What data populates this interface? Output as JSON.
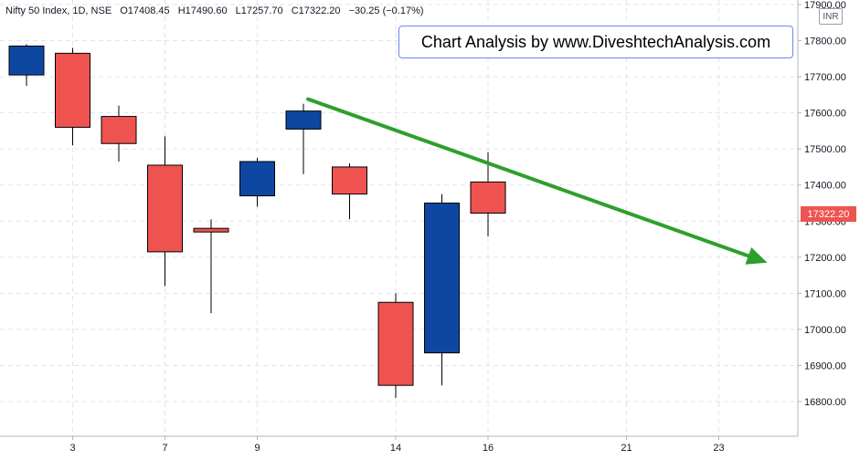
{
  "header": {
    "symbol": "Nifty 50 Index, 1D, NSE",
    "open": "O17408.45",
    "high": "H17490.60",
    "low": "L17257.70",
    "close": "C17322.20",
    "change": "−30.25 (−0.17%)"
  },
  "watermark": "Chart Analysis by www.DiveshtechAnalysis.com",
  "currency": "INR",
  "last_price": "17322.20",
  "colors": {
    "up": "#0d47a1",
    "down": "#ef5350",
    "trendline": "#2ca02c",
    "grid": "#e0e3eb"
  },
  "chart_data": {
    "type": "candlestick",
    "ylim": [
      16735,
      17920
    ],
    "y_ticks": [
      16800,
      16900,
      17000,
      17100,
      17200,
      17300,
      17400,
      17500,
      17600,
      17700,
      17800,
      17900
    ],
    "x_ticks": [
      {
        "label": "3",
        "index": 1
      },
      {
        "label": "7",
        "index": 3
      },
      {
        "label": "9",
        "index": 5
      },
      {
        "label": "14",
        "index": 8
      },
      {
        "label": "16",
        "index": 10
      },
      {
        "label": "21",
        "index": 13
      },
      {
        "label": "23",
        "index": 15
      }
    ],
    "candles": [
      {
        "index": 0,
        "open": 17705,
        "high": 17790,
        "low": 17675,
        "close": 17785
      },
      {
        "index": 1,
        "open": 17765,
        "high": 17780,
        "low": 17510,
        "close": 17560
      },
      {
        "index": 2,
        "open": 17590,
        "high": 17620,
        "low": 17465,
        "close": 17515
      },
      {
        "index": 3,
        "open": 17455,
        "high": 17535,
        "low": 17120,
        "close": 17215
      },
      {
        "index": 4,
        "open": 17280,
        "high": 17305,
        "low": 17045,
        "close": 17270
      },
      {
        "index": 5,
        "open": 17370,
        "high": 17475,
        "low": 17340,
        "close": 17465
      },
      {
        "index": 6,
        "open": 17555,
        "high": 17625,
        "low": 17430,
        "close": 17605
      },
      {
        "index": 7,
        "open": 17450,
        "high": 17460,
        "low": 17305,
        "close": 17375
      },
      {
        "index": 8,
        "open": 17075,
        "high": 17100,
        "low": 16810,
        "close": 16845
      },
      {
        "index": 9,
        "open": 16935,
        "high": 17375,
        "low": 16845,
        "close": 17350
      },
      {
        "index": 10,
        "open": 17408.45,
        "high": 17490.6,
        "low": 17257.7,
        "close": 17322.2
      }
    ],
    "trendline": {
      "start": {
        "index": 6.1,
        "value": 17638
      },
      "end": {
        "index": 16.05,
        "value": 17185
      }
    }
  }
}
